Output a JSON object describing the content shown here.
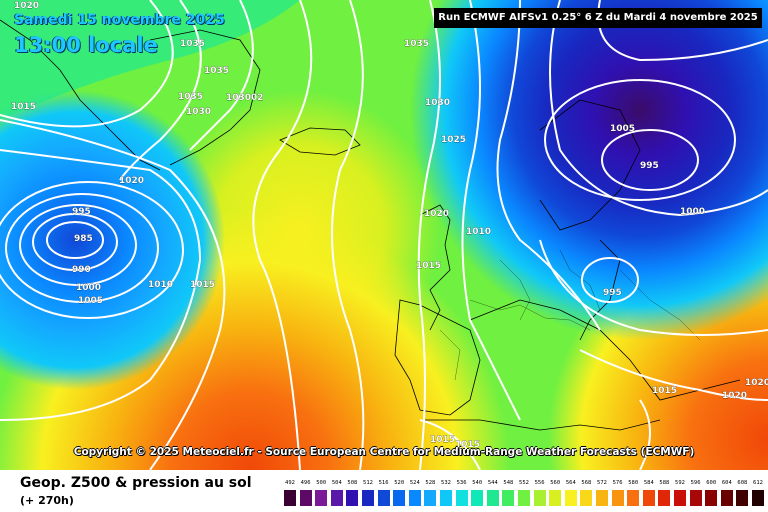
{
  "header": {
    "date": "Samedi 15 novembre 2025",
    "local_time": "13:00 locale",
    "run_info": "Run ECMWF AIFSv1 0.25° 6 Z du Mardi 4 novembre 2025"
  },
  "copyright": "Copyright © 2025 Meteociel.fr - Source European Centre for Medium-Range Weather Forecasts (ECMWF)",
  "footer": {
    "parameter": "Geop. Z500 & pression au sol",
    "lead_time": "(+ 270h)"
  },
  "color_scale": {
    "labels": [
      "492",
      "496",
      "500",
      "504",
      "508",
      "512",
      "516",
      "520",
      "524",
      "528",
      "532",
      "536",
      "540",
      "544",
      "548",
      "552",
      "556",
      "560",
      "564",
      "568",
      "572",
      "576",
      "580",
      "584",
      "588",
      "592",
      "596",
      "600",
      "604",
      "608",
      "612"
    ],
    "colors": [
      "#3a0033",
      "#5c0a66",
      "#7a1a99",
      "#5a18a8",
      "#3010b0",
      "#1828c0",
      "#1048d8",
      "#0868ee",
      "#0a88ff",
      "#14a8ff",
      "#10c8f8",
      "#10e0e0",
      "#10e8b8",
      "#20e890",
      "#40ec60",
      "#70f040",
      "#a8f030",
      "#d8f020",
      "#f8f020",
      "#f8d818",
      "#f8b410",
      "#f89410",
      "#f87010",
      "#f04808",
      "#e02808",
      "#c81008",
      "#a80808",
      "#880000",
      "#680000",
      "#400000",
      "#200000"
    ]
  },
  "pressure_labels": [
    "1020",
    "1035",
    "1035",
    "1035",
    "1030",
    "1030",
    "02",
    "1015",
    "1020",
    "995",
    "985",
    "990",
    "1000",
    "1005",
    "1010",
    "1015",
    "1035",
    "1030",
    "1025",
    "1020",
    "1010",
    "1015",
    "1005",
    "995",
    "1000",
    "995",
    "1015",
    "1020",
    "1015",
    "1015",
    "1020"
  ],
  "low_centers": [
    "985",
    "995",
    "995"
  ]
}
